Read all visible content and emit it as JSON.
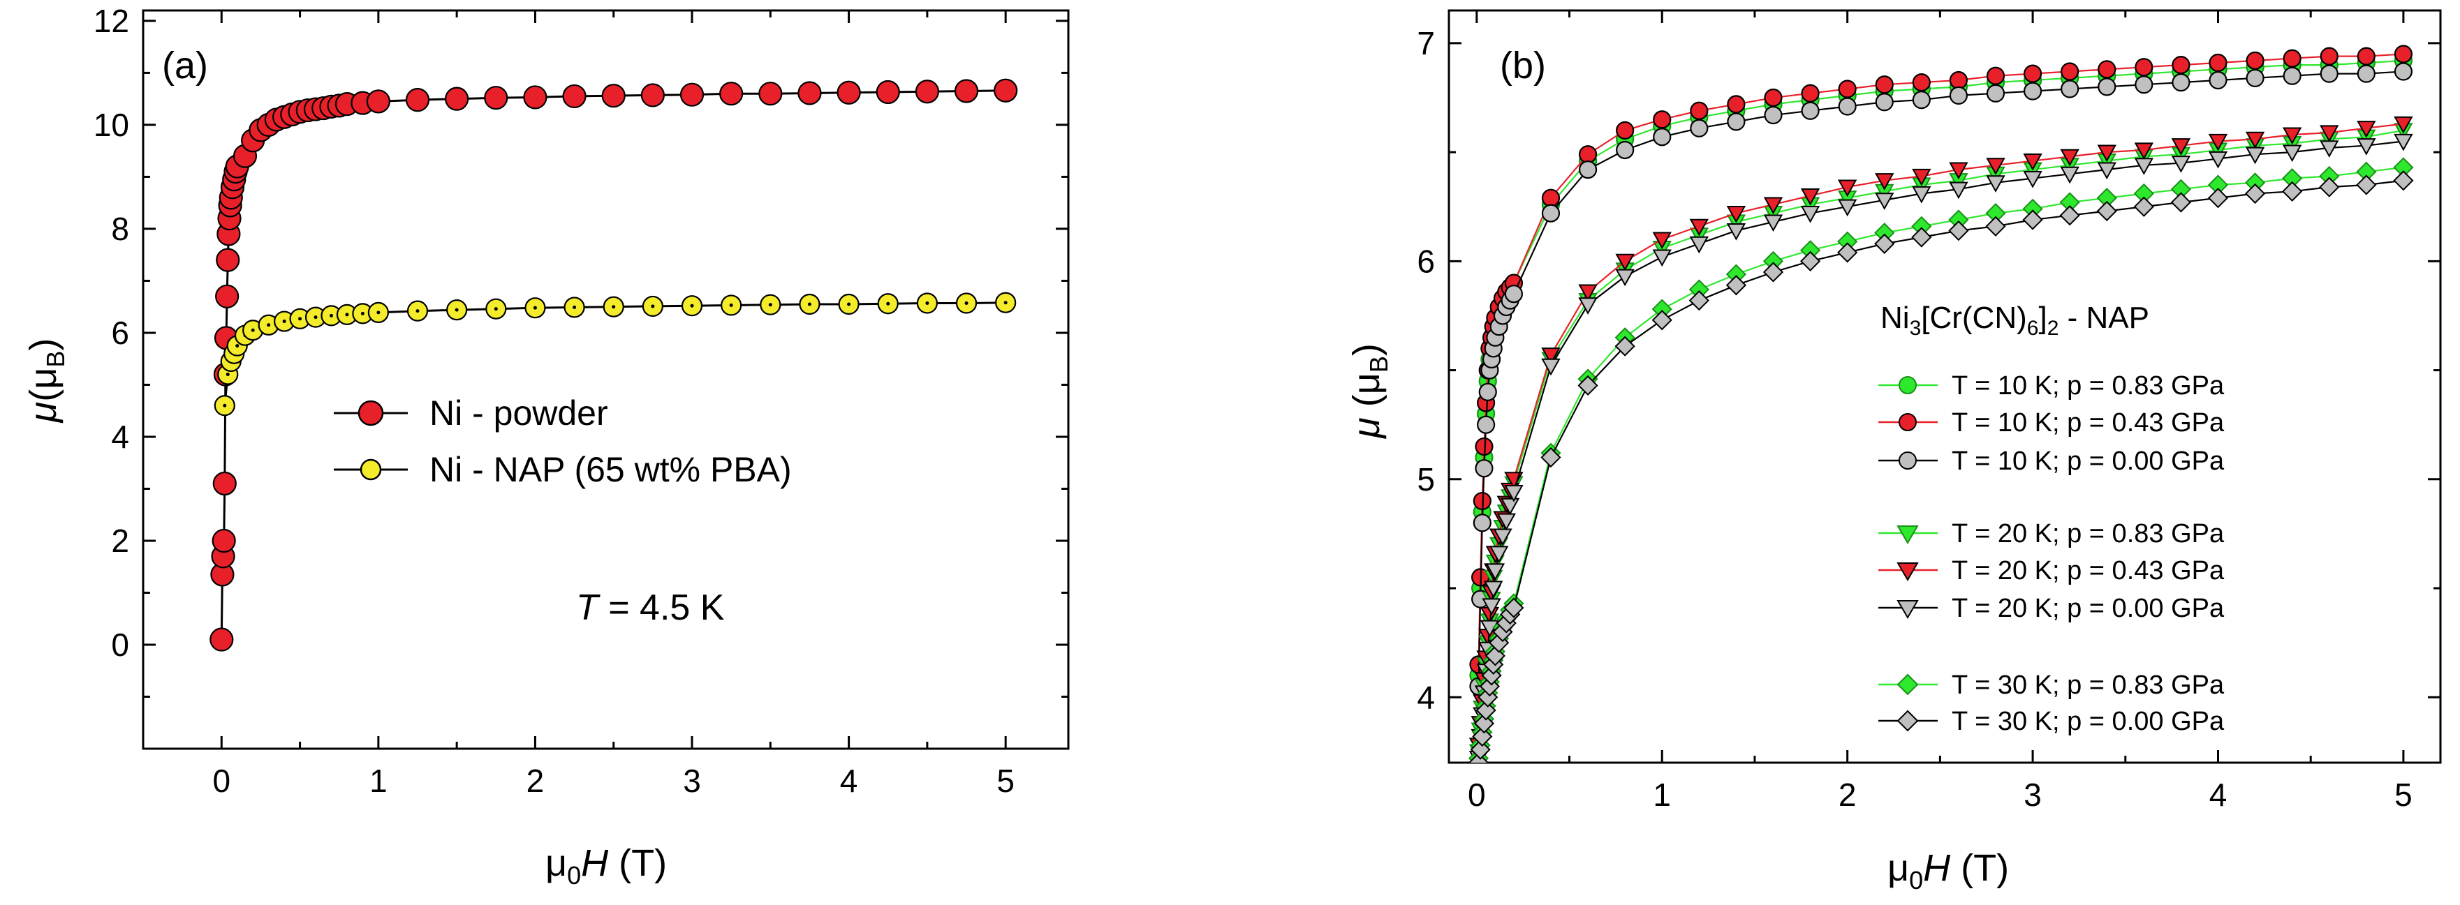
{
  "chart_data": [
    {
      "type": "scatter",
      "panel_label": "(a)",
      "xlabel": {
        "pre": "μ",
        "sub": "0",
        "var": "H",
        "post": " (T)"
      },
      "ylabel": {
        "var": "μ",
        "open": "(μ",
        "sub": "B",
        "close": ")"
      },
      "xlim": [
        -0.5,
        5.4
      ],
      "ylim": [
        -2,
        12.2
      ],
      "xticks": [
        0,
        1,
        2,
        3,
        4,
        5
      ],
      "yticks": [
        0,
        2,
        4,
        6,
        8,
        10,
        12
      ],
      "annotation": {
        "var": "T",
        "rest": " = 4.5 K"
      },
      "legend_position": "center-right",
      "series": [
        {
          "name": "Ni - powder",
          "color": "#e8202a",
          "marker": "circle",
          "x": [
            0,
            0.005,
            0.01,
            0.015,
            0.02,
            0.025,
            0.03,
            0.035,
            0.04,
            0.045,
            0.05,
            0.055,
            0.06,
            0.07,
            0.08,
            0.09,
            0.1,
            0.15,
            0.2,
            0.25,
            0.3,
            0.35,
            0.4,
            0.45,
            0.5,
            0.55,
            0.6,
            0.65,
            0.7,
            0.75,
            0.8,
            0.9,
            1.0,
            1.25,
            1.5,
            1.75,
            2.0,
            2.25,
            2.5,
            2.75,
            3.0,
            3.25,
            3.5,
            3.75,
            4.0,
            4.25,
            4.5,
            4.75,
            5.0
          ],
          "y": [
            0.1,
            1.35,
            1.7,
            2.0,
            3.1,
            5.2,
            5.9,
            6.7,
            7.4,
            7.9,
            8.2,
            8.45,
            8.6,
            8.8,
            8.95,
            9.1,
            9.2,
            9.4,
            9.7,
            9.9,
            10.0,
            10.1,
            10.15,
            10.2,
            10.25,
            10.28,
            10.3,
            10.32,
            10.35,
            10.37,
            10.4,
            10.42,
            10.45,
            10.48,
            10.5,
            10.52,
            10.53,
            10.55,
            10.56,
            10.57,
            10.58,
            10.6,
            10.6,
            10.61,
            10.62,
            10.63,
            10.64,
            10.65,
            10.66
          ]
        },
        {
          "name": "Ni - NAP (65 wt% PBA)",
          "color": "#f4ec2b",
          "marker": "circle",
          "x": [
            0.02,
            0.04,
            0.06,
            0.08,
            0.1,
            0.15,
            0.2,
            0.3,
            0.4,
            0.5,
            0.6,
            0.7,
            0.8,
            0.9,
            1.0,
            1.25,
            1.5,
            1.75,
            2.0,
            2.25,
            2.5,
            2.75,
            3.0,
            3.25,
            3.5,
            3.75,
            4.0,
            4.25,
            4.5,
            4.75,
            5.0
          ],
          "y": [
            4.6,
            5.2,
            5.45,
            5.6,
            5.75,
            5.95,
            6.05,
            6.15,
            6.22,
            6.27,
            6.3,
            6.33,
            6.35,
            6.37,
            6.39,
            6.42,
            6.44,
            6.46,
            6.48,
            6.49,
            6.5,
            6.51,
            6.52,
            6.53,
            6.54,
            6.55,
            6.55,
            6.56,
            6.57,
            6.57,
            6.58
          ]
        }
      ]
    },
    {
      "type": "scatter",
      "panel_label": "(b)",
      "xlabel": {
        "pre": "μ",
        "sub": "0",
        "var": "H",
        "post": " (T)"
      },
      "ylabel": {
        "var": "μ",
        "open": " (μ",
        "sub": "B",
        "close": ")"
      },
      "xlim": [
        -0.15,
        5.2
      ],
      "ylim": [
        3.7,
        7.15
      ],
      "xticks": [
        0,
        1,
        2,
        3,
        4,
        5
      ],
      "yticks": [
        4,
        5,
        6,
        7
      ],
      "legend_title": {
        "a": "Ni",
        "s1": "3",
        "b": "[Cr(CN)",
        "s2": "6",
        "c": "]",
        "s3": "2",
        "d": " - NAP"
      },
      "legend_position": "center-right",
      "series": [
        {
          "name": "T = 10 K; p = 0.83 GPa",
          "color": "#2ee82e",
          "line_color": "#2ee82e",
          "marker": "circle",
          "T": 10,
          "x": [
            0.01,
            0.02,
            0.03,
            0.04,
            0.05,
            0.06,
            0.07,
            0.08,
            0.09,
            0.1,
            0.12,
            0.14,
            0.16,
            0.18,
            0.2,
            0.4,
            0.6,
            0.8,
            1.0,
            1.2,
            1.4,
            1.6,
            1.8,
            2.0,
            2.2,
            2.4,
            2.6,
            2.8,
            3.0,
            3.2,
            3.4,
            3.6,
            3.8,
            4.0,
            4.2,
            4.4,
            4.6,
            4.8,
            5.0
          ],
          "y": [
            4.1,
            4.5,
            4.85,
            5.1,
            5.3,
            5.45,
            5.55,
            5.6,
            5.65,
            5.7,
            5.75,
            5.8,
            5.84,
            5.87,
            5.9,
            6.26,
            6.46,
            6.56,
            6.62,
            6.66,
            6.69,
            6.72,
            6.74,
            6.76,
            6.78,
            6.79,
            6.8,
            6.82,
            6.83,
            6.84,
            6.85,
            6.86,
            6.87,
            6.88,
            6.89,
            6.9,
            6.9,
            6.91,
            6.92
          ]
        },
        {
          "name": "T = 10 K; p = 0.43 GPa",
          "color": "#e8202a",
          "line_color": "#e8202a",
          "marker": "circle",
          "T": 10,
          "x": [
            0.01,
            0.02,
            0.03,
            0.04,
            0.05,
            0.06,
            0.07,
            0.08,
            0.09,
            0.1,
            0.12,
            0.14,
            0.16,
            0.18,
            0.2,
            0.4,
            0.6,
            0.8,
            1.0,
            1.2,
            1.4,
            1.6,
            1.8,
            2.0,
            2.2,
            2.4,
            2.6,
            2.8,
            3.0,
            3.2,
            3.4,
            3.6,
            3.8,
            4.0,
            4.2,
            4.4,
            4.6,
            4.8,
            5.0
          ],
          "y": [
            4.15,
            4.55,
            4.9,
            5.15,
            5.35,
            5.5,
            5.6,
            5.65,
            5.7,
            5.74,
            5.79,
            5.83,
            5.86,
            5.88,
            5.9,
            6.29,
            6.49,
            6.6,
            6.65,
            6.69,
            6.72,
            6.75,
            6.77,
            6.79,
            6.81,
            6.82,
            6.83,
            6.85,
            6.86,
            6.87,
            6.88,
            6.89,
            6.9,
            6.91,
            6.92,
            6.93,
            6.94,
            6.94,
            6.95
          ]
        },
        {
          "name": "T = 10 K; p = 0.00 GPa",
          "color": "#c0c0c0",
          "line_color": "#000000",
          "marker": "circle",
          "T": 10,
          "x": [
            0.01,
            0.02,
            0.03,
            0.04,
            0.05,
            0.06,
            0.07,
            0.08,
            0.09,
            0.1,
            0.12,
            0.14,
            0.16,
            0.18,
            0.2,
            0.4,
            0.6,
            0.8,
            1.0,
            1.2,
            1.4,
            1.6,
            1.8,
            2.0,
            2.2,
            2.4,
            2.6,
            2.8,
            3.0,
            3.2,
            3.4,
            3.6,
            3.8,
            4.0,
            4.2,
            4.4,
            4.6,
            4.8,
            5.0
          ],
          "y": [
            4.05,
            4.45,
            4.8,
            5.05,
            5.25,
            5.4,
            5.5,
            5.55,
            5.6,
            5.65,
            5.7,
            5.75,
            5.79,
            5.82,
            5.85,
            6.22,
            6.42,
            6.51,
            6.57,
            6.61,
            6.64,
            6.67,
            6.69,
            6.71,
            6.73,
            6.74,
            6.76,
            6.77,
            6.78,
            6.79,
            6.8,
            6.81,
            6.82,
            6.83,
            6.84,
            6.85,
            6.86,
            6.86,
            6.87
          ]
        },
        {
          "name": "T = 20 K; p = 0.83 GPa",
          "color": "#2ee82e",
          "line_color": "#2ee82e",
          "marker": "triangle-down",
          "T": 20,
          "x": [
            0.01,
            0.02,
            0.03,
            0.04,
            0.05,
            0.06,
            0.07,
            0.08,
            0.09,
            0.1,
            0.12,
            0.14,
            0.16,
            0.18,
            0.2,
            0.4,
            0.6,
            0.8,
            1.0,
            1.2,
            1.4,
            1.6,
            1.8,
            2.0,
            2.2,
            2.4,
            2.6,
            2.8,
            3.0,
            3.2,
            3.4,
            3.6,
            3.8,
            4.0,
            4.2,
            4.4,
            4.6,
            4.8,
            5.0
          ],
          "y": [
            3.75,
            3.85,
            3.95,
            4.05,
            4.15,
            4.25,
            4.35,
            4.45,
            4.55,
            4.62,
            4.7,
            4.78,
            4.85,
            4.92,
            4.98,
            5.55,
            5.82,
            5.96,
            6.06,
            6.12,
            6.18,
            6.22,
            6.26,
            6.29,
            6.32,
            6.35,
            6.37,
            6.4,
            6.42,
            6.44,
            6.46,
            6.48,
            6.49,
            6.51,
            6.53,
            6.54,
            6.56,
            6.57,
            6.6
          ]
        },
        {
          "name": "T = 20 K; p = 0.43 GPa",
          "color": "#e8202a",
          "line_color": "#e8202a",
          "marker": "triangle-down",
          "T": 20,
          "x": [
            0.01,
            0.02,
            0.03,
            0.04,
            0.05,
            0.06,
            0.07,
            0.08,
            0.09,
            0.1,
            0.12,
            0.14,
            0.16,
            0.18,
            0.2,
            0.4,
            0.6,
            0.8,
            1.0,
            1.2,
            1.4,
            1.6,
            1.8,
            2.0,
            2.2,
            2.4,
            2.6,
            2.8,
            3.0,
            3.2,
            3.4,
            3.6,
            3.8,
            4.0,
            4.2,
            4.4,
            4.6,
            4.8,
            5.0
          ],
          "y": [
            3.78,
            3.88,
            3.98,
            4.08,
            4.18,
            4.28,
            4.38,
            4.48,
            4.58,
            4.66,
            4.74,
            4.82,
            4.89,
            4.95,
            5.0,
            5.57,
            5.86,
            6.0,
            6.1,
            6.16,
            6.22,
            6.26,
            6.3,
            6.34,
            6.37,
            6.39,
            6.42,
            6.44,
            6.46,
            6.48,
            6.5,
            6.51,
            6.53,
            6.55,
            6.56,
            6.58,
            6.59,
            6.61,
            6.63
          ]
        },
        {
          "name": "T = 20 K; p = 0.00 GPa",
          "color": "#c0c0c0",
          "line_color": "#000000",
          "marker": "triangle-down",
          "T": 20,
          "x": [
            0.01,
            0.02,
            0.03,
            0.04,
            0.05,
            0.06,
            0.07,
            0.08,
            0.09,
            0.1,
            0.12,
            0.14,
            0.16,
            0.18,
            0.2,
            0.4,
            0.6,
            0.8,
            1.0,
            1.2,
            1.4,
            1.6,
            1.8,
            2.0,
            2.2,
            2.4,
            2.6,
            2.8,
            3.0,
            3.2,
            3.4,
            3.6,
            3.8,
            4.0,
            4.2,
            4.4,
            4.6,
            4.8,
            5.0
          ],
          "y": [
            3.72,
            3.82,
            3.92,
            4.02,
            4.12,
            4.22,
            4.32,
            4.42,
            4.5,
            4.58,
            4.66,
            4.74,
            4.81,
            4.88,
            4.94,
            5.52,
            5.8,
            5.93,
            6.02,
            6.08,
            6.14,
            6.18,
            6.22,
            6.25,
            6.28,
            6.31,
            6.33,
            6.36,
            6.38,
            6.4,
            6.42,
            6.44,
            6.45,
            6.47,
            6.49,
            6.5,
            6.52,
            6.53,
            6.55
          ]
        },
        {
          "name": "T = 30 K; p = 0.83 GPa",
          "color": "#2ee82e",
          "line_color": "#2ee82e",
          "marker": "diamond",
          "T": 30,
          "x": [
            0.01,
            0.02,
            0.03,
            0.04,
            0.05,
            0.06,
            0.07,
            0.08,
            0.09,
            0.1,
            0.12,
            0.14,
            0.16,
            0.18,
            0.2,
            0.4,
            0.6,
            0.8,
            1.0,
            1.2,
            1.4,
            1.6,
            1.8,
            2.0,
            2.2,
            2.4,
            2.6,
            2.8,
            3.0,
            3.2,
            3.4,
            3.6,
            3.8,
            4.0,
            4.2,
            4.4,
            4.6,
            4.8,
            5.0
          ],
          "y": [
            3.72,
            3.78,
            3.84,
            3.9,
            3.96,
            4.02,
            4.07,
            4.12,
            4.17,
            4.21,
            4.27,
            4.32,
            4.36,
            4.4,
            4.43,
            5.12,
            5.46,
            5.65,
            5.78,
            5.87,
            5.94,
            6.0,
            6.05,
            6.09,
            6.13,
            6.16,
            6.19,
            6.22,
            6.24,
            6.27,
            6.29,
            6.31,
            6.33,
            6.35,
            6.36,
            6.38,
            6.39,
            6.41,
            6.43
          ]
        },
        {
          "name": "T = 30 K; p = 0.00 GPa",
          "color": "#c0c0c0",
          "line_color": "#000000",
          "marker": "diamond",
          "T": 30,
          "x": [
            0.01,
            0.02,
            0.03,
            0.04,
            0.05,
            0.06,
            0.07,
            0.08,
            0.09,
            0.1,
            0.12,
            0.14,
            0.16,
            0.18,
            0.2,
            0.4,
            0.6,
            0.8,
            1.0,
            1.2,
            1.4,
            1.6,
            1.8,
            2.0,
            2.2,
            2.4,
            2.6,
            2.8,
            3.0,
            3.2,
            3.4,
            3.6,
            3.8,
            4.0,
            4.2,
            4.4,
            4.6,
            4.8,
            5.0
          ],
          "y": [
            3.7,
            3.76,
            3.82,
            3.88,
            3.94,
            4.0,
            4.05,
            4.1,
            4.15,
            4.19,
            4.25,
            4.3,
            4.34,
            4.38,
            4.41,
            5.1,
            5.43,
            5.61,
            5.73,
            5.82,
            5.89,
            5.95,
            6.0,
            6.04,
            6.08,
            6.11,
            6.14,
            6.16,
            6.19,
            6.21,
            6.23,
            6.25,
            6.27,
            6.29,
            6.31,
            6.32,
            6.34,
            6.35,
            6.37
          ]
        }
      ]
    }
  ]
}
